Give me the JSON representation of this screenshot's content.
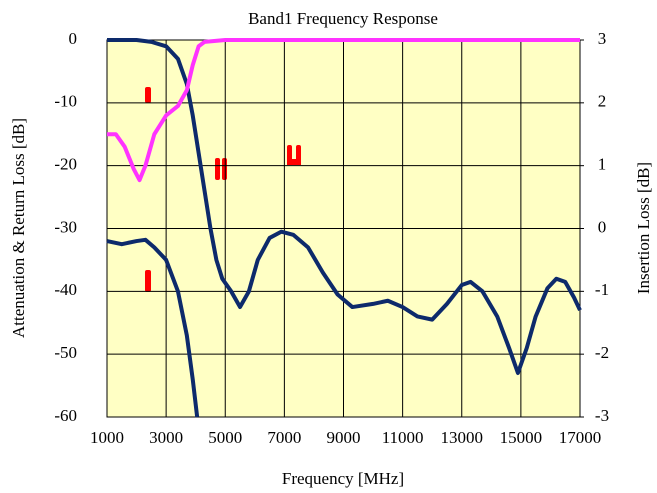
{
  "chart_data": {
    "type": "line",
    "title": "Band1 Frequency Response",
    "xlabel": "Frequency [MHz]",
    "ylabel": "Attenuation & Return Loss [dB]",
    "y2label": "Insertion Loss [dB]",
    "xlim": [
      1000,
      17000
    ],
    "xticks": [
      1000,
      3000,
      5000,
      7000,
      9000,
      11000,
      13000,
      15000,
      17000
    ],
    "ylim": [
      -60,
      0
    ],
    "yticks": [
      -60,
      -50,
      -40,
      -30,
      -20,
      -10,
      0
    ],
    "y2lim": [
      -3,
      3
    ],
    "y2ticks": [
      -3,
      -2,
      -1,
      0,
      1,
      2,
      3
    ],
    "grid": true,
    "series": [
      {
        "color": "#0d2a6b",
        "x": [
          1000,
          2000,
          2500,
          3000,
          3400,
          3700,
          3900,
          4100,
          4300,
          4500,
          4700,
          4900,
          5200,
          5500,
          5800,
          6100,
          6500,
          6900,
          7300,
          7800,
          8300,
          8800,
          9300,
          10000,
          10500,
          11000,
          11500,
          12000,
          12500,
          13000,
          13300,
          13700,
          14200,
          14600,
          14900,
          15200,
          15500,
          15900,
          16200,
          16500,
          16800,
          17000
        ],
        "values": [
          0,
          0,
          -0.3,
          -1,
          -3,
          -7,
          -12,
          -18,
          -24,
          -30,
          -35,
          -38,
          -40,
          -42.5,
          -40,
          -35,
          -31.5,
          -30.5,
          -31,
          -33,
          -37,
          -40.5,
          -42.5,
          -42,
          -41.5,
          -42.5,
          -44,
          -44.5,
          -42,
          -39,
          -38.5,
          -40,
          -44,
          -49,
          -53,
          -49,
          -44,
          -39.5,
          -38,
          -38.5,
          -41,
          -43
        ]
      },
      {
        "color": "#0d2a6b",
        "x": [
          1000,
          1500,
          2000,
          2300,
          2600,
          3000,
          3400,
          3700,
          3900,
          4050
        ],
        "values": [
          -32,
          -32.5,
          -32,
          -31.8,
          -33,
          -35,
          -40,
          -47,
          -54,
          -60
        ]
      },
      {
        "color": "#ff33ff",
        "x": [
          1000,
          1300,
          1600,
          1900,
          2100,
          2300,
          2600,
          3000,
          3400,
          3700,
          3900,
          4100,
          4300,
          5000,
          17000
        ],
        "values": [
          -15,
          -15,
          -17,
          -20.5,
          -22.3,
          -20,
          -15,
          -12,
          -10.5,
          -8,
          -4,
          -1,
          -0.3,
          0,
          0
        ]
      }
    ]
  }
}
